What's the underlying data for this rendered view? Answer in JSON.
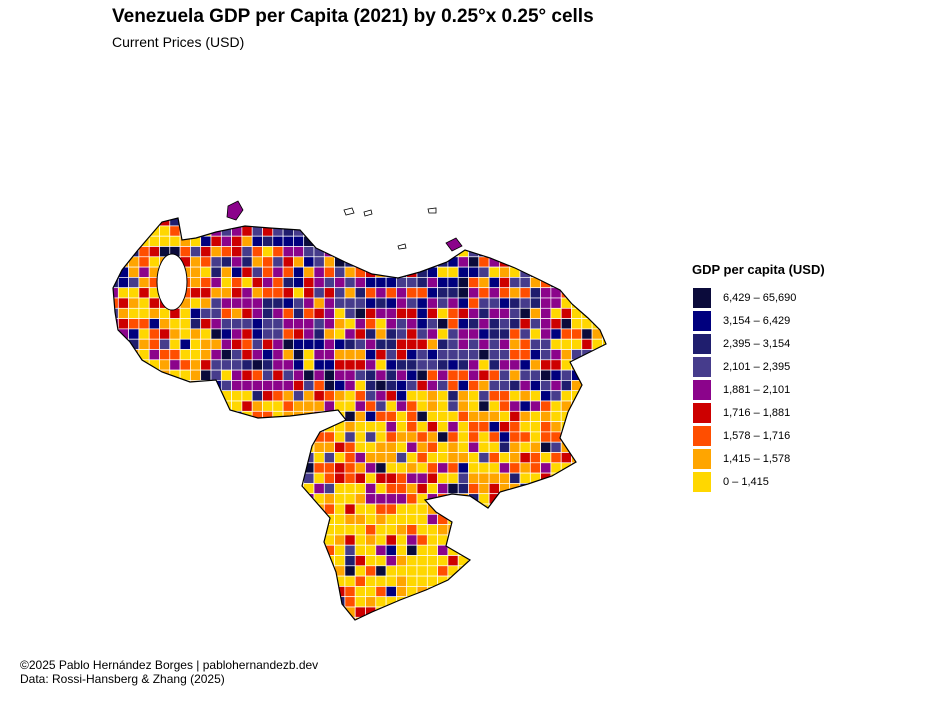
{
  "header": {
    "title": "Venezuela GDP per Capita (2021) by 0.25°x 0.25° cells",
    "subtitle": "Current Prices (USD)"
  },
  "legend": {
    "title": "GDP per capita (USD)",
    "bins": [
      {
        "label": "6,429 – 65,690",
        "color": "#0b0b3b"
      },
      {
        "label": "3,154 – 6,429",
        "color": "#00007e"
      },
      {
        "label": "2,395 – 3,154",
        "color": "#1f1e6e"
      },
      {
        "label": "2,101 – 2,395",
        "color": "#463c8c"
      },
      {
        "label": "1,881 – 2,101",
        "color": "#8b048b"
      },
      {
        "label": "1,716 – 1,881",
        "color": "#cd0000"
      },
      {
        "label": "1,578 – 1,716",
        "color": "#ff4e00"
      },
      {
        "label": "1,415 – 1,578",
        "color": "#ffa500"
      },
      {
        "label": "0 – 1,415",
        "color": "#ffd700"
      }
    ]
  },
  "caption": {
    "line1": "©2025 Pablo Hernández Borges | pablohernandezb.dev",
    "line2": "Data: Rossi-Hansberg & Zhang (2025)"
  }
}
